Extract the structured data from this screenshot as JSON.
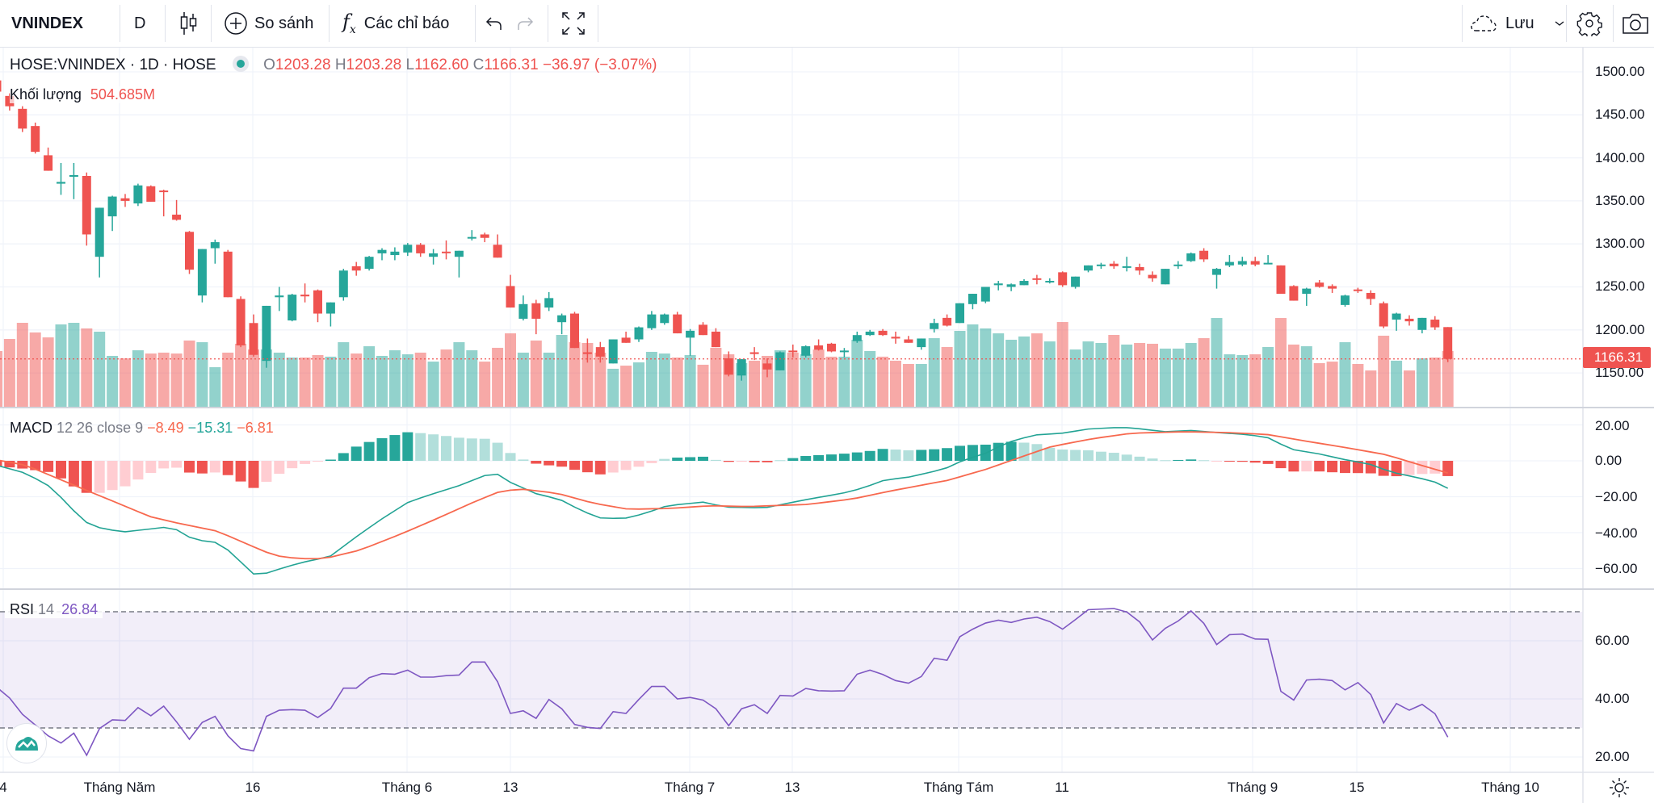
{
  "toolbar": {
    "symbol": "VNINDEX",
    "interval": "D",
    "compare_label": "So sánh",
    "indicators_label": "Các chỉ báo",
    "save_label": "Lưu",
    "icons": [
      "candlestick-icon",
      "plus-circle-icon",
      "fx-icon",
      "undo-icon",
      "redo-icon",
      "fullscreen-icon",
      "cloud-icon",
      "chevron-down-icon",
      "gear-icon",
      "camera-icon"
    ]
  },
  "legend": {
    "title": "HOSE:VNINDEX · 1D · HOSE",
    "o_label": "O",
    "o": "1203.28",
    "h_label": "H",
    "h": "1203.28",
    "l_label": "L",
    "l": "1162.60",
    "c_label": "C",
    "c": "1166.31",
    "change": "−36.97 (−3.07%)",
    "volume_label": "Khối lượng",
    "volume": "504.685M",
    "macd_label": "MACD",
    "macd_params": "12 26 close 9",
    "macd_hist_value": "−8.49",
    "macd_value": "−15.31",
    "signal_value": "−6.81",
    "rsi_label": "RSI",
    "rsi_params": "14",
    "rsi_value": "26.84"
  },
  "price_axis": [
    "1500.00",
    "1450.00",
    "1400.00",
    "1350.00",
    "1300.00",
    "1250.00",
    "1200.00",
    "1150.00"
  ],
  "last_price_label": "1166.31",
  "macd_axis": [
    "20.00",
    "0.00",
    "−20.00",
    "−40.00",
    "−60.00"
  ],
  "rsi_axis": [
    "60.00",
    "40.00",
    "20.00"
  ],
  "time_axis": [
    "4",
    "Tháng Năm",
    "16",
    "Tháng 6",
    "13",
    "Tháng 7",
    "13",
    "Tháng Tám",
    "11",
    "Tháng 9",
    "15",
    "Tháng 10"
  ],
  "colors": {
    "up": "#26a69a",
    "down": "#ef5350",
    "rsi": "#7e57c2",
    "macd": "#22a394",
    "signal": "#f7684e"
  },
  "chart_data": {
    "type": "candlestick",
    "fields": [
      "open",
      "high",
      "low",
      "close",
      "volume_millions"
    ],
    "price_range": [
      1150,
      1500
    ],
    "bars": [
      [
        1490,
        1495,
        1470,
        1477,
        504
      ],
      [
        1472,
        1475,
        1455,
        1460,
        612
      ],
      [
        1457,
        1460,
        1430,
        1434,
        756
      ],
      [
        1437,
        1441,
        1405,
        1407,
        670
      ],
      [
        1403,
        1412,
        1385,
        1385,
        626
      ],
      [
        1370,
        1394,
        1357,
        1372,
        742
      ],
      [
        1378,
        1394,
        1352,
        1380,
        756
      ],
      [
        1379,
        1383,
        1298,
        1311,
        706
      ],
      [
        1285,
        1342,
        1261,
        1342,
        677
      ],
      [
        1332,
        1356,
        1315,
        1355,
        461
      ],
      [
        1353,
        1358,
        1343,
        1350,
        439
      ],
      [
        1347,
        1370,
        1344,
        1368,
        511
      ],
      [
        1367,
        1368,
        1349,
        1349,
        482
      ],
      [
        1362,
        1363,
        1332,
        1361,
        490
      ],
      [
        1334,
        1351,
        1327,
        1328,
        482
      ],
      [
        1314,
        1315,
        1265,
        1270,
        598
      ],
      [
        1240,
        1294,
        1232,
        1294,
        583
      ],
      [
        1295,
        1305,
        1277,
        1302,
        360
      ],
      [
        1291,
        1293,
        1238,
        1238,
        490
      ],
      [
        1236,
        1239,
        1180,
        1182,
        569
      ],
      [
        1208,
        1218,
        1169,
        1171,
        518
      ],
      [
        1164,
        1228,
        1156,
        1228,
        518
      ],
      [
        1238,
        1250,
        1222,
        1240,
        490
      ],
      [
        1211,
        1242,
        1210,
        1241,
        446
      ],
      [
        1241,
        1254,
        1232,
        1239,
        446
      ],
      [
        1246,
        1247,
        1209,
        1219,
        468
      ],
      [
        1219,
        1232,
        1204,
        1232,
        454
      ],
      [
        1238,
        1271,
        1234,
        1269,
        583
      ],
      [
        1274,
        1279,
        1263,
        1269,
        482
      ],
      [
        1271,
        1286,
        1269,
        1285,
        547
      ],
      [
        1289,
        1295,
        1281,
        1293,
        461
      ],
      [
        1287,
        1296,
        1281,
        1291,
        511
      ],
      [
        1290,
        1301,
        1286,
        1299,
        475
      ],
      [
        1299,
        1301,
        1285,
        1289,
        490
      ],
      [
        1285,
        1294,
        1276,
        1289,
        410
      ],
      [
        1291,
        1304,
        1282,
        1290,
        518
      ],
      [
        1285,
        1292,
        1261,
        1292,
        583
      ],
      [
        1307,
        1316,
        1304,
        1308,
        511
      ],
      [
        1311,
        1313,
        1302,
        1307,
        410
      ],
      [
        1299,
        1311,
        1284,
        1284,
        533
      ],
      [
        1251,
        1264,
        1226,
        1226,
        662
      ],
      [
        1213,
        1240,
        1211,
        1230,
        490
      ],
      [
        1231,
        1235,
        1195,
        1213,
        598
      ],
      [
        1226,
        1244,
        1222,
        1237,
        490
      ],
      [
        1209,
        1219,
        1195,
        1217,
        648
      ],
      [
        1219,
        1221,
        1179,
        1179,
        583
      ],
      [
        1174,
        1190,
        1162,
        1172,
        576
      ],
      [
        1180,
        1186,
        1162,
        1169,
        490
      ],
      [
        1161,
        1189,
        1161,
        1189,
        346
      ],
      [
        1191,
        1198,
        1185,
        1185,
        374
      ],
      [
        1189,
        1204,
        1186,
        1203,
        403
      ],
      [
        1202,
        1222,
        1200,
        1218,
        497
      ],
      [
        1208,
        1219,
        1206,
        1218,
        482
      ],
      [
        1218,
        1221,
        1196,
        1196,
        446
      ],
      [
        1191,
        1201,
        1170,
        1199,
        468
      ],
      [
        1206,
        1209,
        1194,
        1194,
        382
      ],
      [
        1198,
        1202,
        1180,
        1180,
        533
      ],
      [
        1167,
        1175,
        1146,
        1148,
        475
      ],
      [
        1147,
        1166,
        1141,
        1166,
        396
      ],
      [
        1174,
        1180,
        1165,
        1172,
        418
      ],
      [
        1161,
        1167,
        1145,
        1154,
        461
      ],
      [
        1153,
        1175,
        1153,
        1174,
        511
      ],
      [
        1176,
        1183,
        1168,
        1175,
        490
      ],
      [
        1170,
        1182,
        1168,
        1181,
        475
      ],
      [
        1182,
        1189,
        1176,
        1177,
        518
      ],
      [
        1184,
        1185,
        1174,
        1175,
        454
      ],
      [
        1175,
        1179,
        1168,
        1176,
        454
      ],
      [
        1187,
        1198,
        1185,
        1194,
        605
      ],
      [
        1194,
        1200,
        1193,
        1198,
        504
      ],
      [
        1199,
        1201,
        1193,
        1194,
        454
      ],
      [
        1192,
        1198,
        1184,
        1190,
        418
      ],
      [
        1189,
        1193,
        1185,
        1185,
        389
      ],
      [
        1180,
        1190,
        1177,
        1190,
        389
      ],
      [
        1201,
        1213,
        1197,
        1208,
        619
      ],
      [
        1214,
        1218,
        1204,
        1205,
        540
      ],
      [
        1208,
        1231,
        1208,
        1231,
        684
      ],
      [
        1230,
        1242,
        1224,
        1242,
        742
      ],
      [
        1233,
        1250,
        1231,
        1250,
        706
      ],
      [
        1252,
        1257,
        1246,
        1254,
        662
      ],
      [
        1250,
        1254,
        1245,
        1253,
        605
      ],
      [
        1252,
        1259,
        1252,
        1257,
        634
      ],
      [
        1260,
        1264,
        1253,
        1259,
        662
      ],
      [
        1256,
        1260,
        1254,
        1257,
        590
      ],
      [
        1267,
        1268,
        1250,
        1252,
        763
      ],
      [
        1250,
        1262,
        1248,
        1262,
        518
      ],
      [
        1269,
        1275,
        1267,
        1275,
        590
      ],
      [
        1275,
        1278,
        1271,
        1276,
        576
      ],
      [
        1277,
        1280,
        1271,
        1274,
        648
      ],
      [
        1273,
        1285,
        1268,
        1274,
        562
      ],
      [
        1273,
        1277,
        1264,
        1269,
        576
      ],
      [
        1264,
        1268,
        1256,
        1260,
        569
      ],
      [
        1253,
        1271,
        1253,
        1271,
        526
      ],
      [
        1275,
        1280,
        1271,
        1276,
        526
      ],
      [
        1280,
        1290,
        1279,
        1289,
        576
      ],
      [
        1292,
        1295,
        1279,
        1282,
        619
      ],
      [
        1264,
        1272,
        1248,
        1271,
        799
      ],
      [
        1275,
        1287,
        1273,
        1279,
        475
      ],
      [
        1276,
        1285,
        1274,
        1280,
        468
      ],
      [
        1280,
        1285,
        1274,
        1276,
        475
      ],
      [
        1277,
        1287,
        1277,
        1278,
        540
      ],
      [
        1275,
        1275,
        1242,
        1242,
        799
      ],
      [
        1251,
        1252,
        1234,
        1234,
        562
      ],
      [
        1242,
        1249,
        1228,
        1248,
        547
      ],
      [
        1255,
        1258,
        1249,
        1250,
        396
      ],
      [
        1251,
        1253,
        1243,
        1248,
        410
      ],
      [
        1229,
        1241,
        1227,
        1240,
        583
      ],
      [
        1247,
        1249,
        1243,
        1246,
        389
      ],
      [
        1243,
        1246,
        1229,
        1236,
        331
      ],
      [
        1231,
        1233,
        1202,
        1204,
        641
      ],
      [
        1212,
        1220,
        1199,
        1219,
        418
      ],
      [
        1213,
        1217,
        1205,
        1210,
        331
      ],
      [
        1200,
        1214,
        1196,
        1214,
        439
      ],
      [
        1212,
        1216,
        1200,
        1203,
        446
      ],
      [
        1203.28,
        1203.28,
        1162.6,
        1166.31,
        504.685
      ]
    ],
    "macd": {
      "range": [
        -65,
        22
      ],
      "macd_points": [
        [
          0,
          -2.5
        ],
        [
          2.3,
          -7
        ],
        [
          4.3,
          -15
        ],
        [
          5.8,
          -26.5
        ],
        [
          7.1,
          -35
        ],
        [
          8.3,
          -38
        ],
        [
          10,
          -39.5
        ],
        [
          11.9,
          -38
        ],
        [
          13.1,
          -37
        ],
        [
          14.1,
          -38.5
        ],
        [
          15.1,
          -43
        ],
        [
          16.3,
          -45
        ],
        [
          16.9,
          -45
        ],
        [
          17.9,
          -49
        ],
        [
          19.1,
          -57
        ],
        [
          20,
          -63
        ],
        [
          20.9,
          -62.8
        ],
        [
          22.7,
          -58.7
        ],
        [
          24.3,
          -55.7
        ],
        [
          25.9,
          -53.5
        ],
        [
          28.3,
          -40.7
        ],
        [
          30.1,
          -31.8
        ],
        [
          32.1,
          -22.8
        ],
        [
          34,
          -18.3
        ],
        [
          36,
          -13.8
        ],
        [
          38,
          -8.2
        ],
        [
          39,
          -7.5
        ],
        [
          40,
          -12
        ],
        [
          42.1,
          -18.6
        ],
        [
          43.8,
          -21.3
        ],
        [
          45.6,
          -28
        ],
        [
          47,
          -31.8
        ],
        [
          48.8,
          -32.2
        ],
        [
          50.4,
          -29.5
        ],
        [
          52.2,
          -25
        ],
        [
          55,
          -23
        ],
        [
          56.8,
          -25.8
        ],
        [
          59.8,
          -26.2
        ],
        [
          63.1,
          -21.5
        ],
        [
          65.9,
          -18
        ],
        [
          67.4,
          -15.3
        ],
        [
          69.1,
          -10.8
        ],
        [
          71.1,
          -9
        ],
        [
          73.8,
          -4.5
        ],
        [
          75.3,
          0.4
        ],
        [
          77,
          4.2
        ],
        [
          78.7,
          10.2
        ],
        [
          80.8,
          14.4
        ],
        [
          82.9,
          15.3
        ],
        [
          85,
          17.7
        ],
        [
          87.6,
          18.7
        ],
        [
          89.2,
          17.7
        ],
        [
          90.9,
          16.2
        ],
        [
          93,
          16.9
        ],
        [
          95.1,
          15.7
        ],
        [
          97.2,
          14.7
        ],
        [
          98.9,
          13.2
        ],
        [
          100.8,
          6.4
        ],
        [
          103.1,
          3.7
        ],
        [
          104.8,
          0.9
        ],
        [
          106.9,
          -1.8
        ],
        [
          108.6,
          -6.3
        ],
        [
          110.6,
          -9.3
        ],
        [
          111.9,
          -11.5
        ],
        [
          113,
          -15.31
        ]
      ],
      "signal_points": [
        [
          0,
          0.5
        ],
        [
          2.3,
          -2.5
        ],
        [
          4.3,
          -8.5
        ],
        [
          7.1,
          -16.8
        ],
        [
          9.4,
          -23.5
        ],
        [
          11.9,
          -31
        ],
        [
          14.1,
          -34.7
        ],
        [
          17.2,
          -39.2
        ],
        [
          19.6,
          -46.7
        ],
        [
          21.6,
          -52.7
        ],
        [
          23.5,
          -54.5
        ],
        [
          25.5,
          -54.5
        ],
        [
          28.3,
          -49.7
        ],
        [
          31.5,
          -40.7
        ],
        [
          34.4,
          -31.8
        ],
        [
          37.2,
          -22.8
        ],
        [
          39.2,
          -17
        ],
        [
          40.8,
          -15.7
        ],
        [
          43.6,
          -18
        ],
        [
          46.4,
          -23.5
        ],
        [
          49.2,
          -27
        ],
        [
          52.4,
          -26.5
        ],
        [
          55.6,
          -25
        ],
        [
          58.4,
          -25.5
        ],
        [
          63.1,
          -24.3
        ],
        [
          66.6,
          -21.3
        ],
        [
          69.6,
          -16.8
        ],
        [
          74.1,
          -10.8
        ],
        [
          77,
          -4.8
        ],
        [
          79.4,
          1.2
        ],
        [
          82.1,
          7.9
        ],
        [
          85.4,
          12.4
        ],
        [
          88.4,
          15.4
        ],
        [
          92.6,
          16.2
        ],
        [
          95.9,
          15.7
        ],
        [
          98.9,
          14.7
        ],
        [
          102,
          10.9
        ],
        [
          105.2,
          7.2
        ],
        [
          108.2,
          3.4
        ],
        [
          110.6,
          -1.8
        ],
        [
          113,
          -6.81
        ]
      ]
    },
    "rsi": {
      "range": [
        14,
        76
      ],
      "upper_band": 70,
      "lower_band": 30,
      "values": [
        44,
        40.3,
        34.7,
        31,
        27.3,
        24.8,
        28.2,
        20.6,
        29.8,
        32.8,
        32.6,
        37,
        34.2,
        37.5,
        32.1,
        26.1,
        31.9,
        34,
        27.3,
        22.9,
        22.1,
        34,
        36.1,
        36.3,
        36.1,
        33.6,
        36.7,
        43.7,
        43.7,
        47.3,
        48.7,
        48.5,
        49.9,
        47.5,
        47.5,
        48,
        48.2,
        52.7,
        52.7,
        45.9,
        35,
        35.9,
        33.3,
        39.8,
        36.6,
        31.2,
        30.2,
        29.8,
        35.6,
        35,
        39.8,
        44.3,
        44.3,
        40,
        40.5,
        39.6,
        36.6,
        30.8,
        36.6,
        38,
        35,
        41.2,
        41,
        43.6,
        42.8,
        42.7,
        42.8,
        48.5,
        49.9,
        48.4,
        46.3,
        45.4,
        47.7,
        54,
        53.3,
        61.4,
        64,
        66.1,
        67.1,
        66.3,
        67.5,
        68.1,
        66.6,
        64,
        67.3,
        70.7,
        70.9,
        71.1,
        69.9,
        66.5,
        60.3,
        64.3,
        66.8,
        70.3,
        66,
        58.7,
        62.1,
        62.3,
        60.6,
        60.5,
        42.6,
        39.6,
        46.5,
        46.8,
        46.3,
        43.1,
        45.6,
        41.5,
        31.7,
        38.4,
        36.1,
        38.1,
        34.9,
        26.84
      ]
    }
  }
}
